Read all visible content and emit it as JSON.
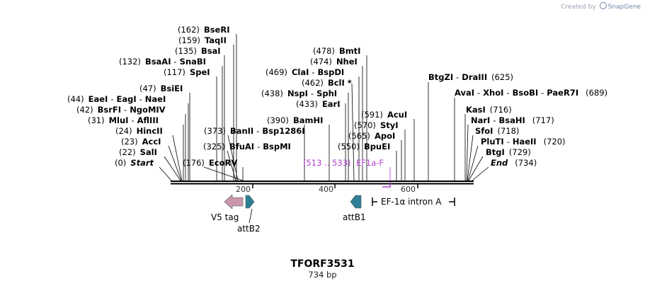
{
  "credit": {
    "prefix": "Created by",
    "brand": "SnapGene"
  },
  "title": "TFORF3531",
  "length_label": "734 bp",
  "ruler": [
    "200",
    "400",
    "600"
  ],
  "sites": [
    {
      "pos": "(162)",
      "names": [
        "BseRI"
      ]
    },
    {
      "pos": "(159)",
      "names": [
        "TaqII"
      ]
    },
    {
      "pos": "(135)",
      "names": [
        "BsaI"
      ]
    },
    {
      "pos": "(132)",
      "names": [
        "BsaAI",
        "SnaBI"
      ]
    },
    {
      "pos": "(117)",
      "names": [
        "SpeI"
      ]
    },
    {
      "pos": "(47)",
      "names": [
        "BsiEI"
      ]
    },
    {
      "pos": "(44)",
      "names": [
        "EaeI",
        "EagI",
        "NaeI"
      ]
    },
    {
      "pos": "(42)",
      "names": [
        "BsrFI",
        "NgoMIV"
      ]
    },
    {
      "pos": "(31)",
      "names": [
        "MluI",
        "AflIII"
      ]
    },
    {
      "pos": "(24)",
      "names": [
        "HincII"
      ]
    },
    {
      "pos": "(23)",
      "names": [
        "AccI"
      ]
    },
    {
      "pos": "(22)",
      "names": [
        "SalI"
      ]
    },
    {
      "pos": "(0)",
      "names": [
        "Start"
      ]
    },
    {
      "pos": "(176)",
      "names": [
        "EcoRV"
      ]
    },
    {
      "pos": "(373)",
      "names": [
        "BanII",
        "Bsp1286I"
      ]
    },
    {
      "pos": "(325)",
      "names": [
        "BfuAI",
        "BspMI"
      ]
    },
    {
      "pos": "(478)",
      "names": [
        "BmtI"
      ]
    },
    {
      "pos": "(474)",
      "names": [
        "NheI"
      ]
    },
    {
      "pos": "(469)",
      "names": [
        "ClaI",
        "BspDI"
      ]
    },
    {
      "pos": "(462)",
      "names": [
        "BclI *"
      ]
    },
    {
      "pos": "(438)",
      "names": [
        "NspI",
        "SphI"
      ]
    },
    {
      "pos": "(433)",
      "names": [
        "EarI"
      ]
    },
    {
      "pos": "(390)",
      "names": [
        "BamHI"
      ]
    },
    {
      "pos": "(591)",
      "names": [
        "AcuI"
      ]
    },
    {
      "pos": "(570)",
      "names": [
        "StyI"
      ]
    },
    {
      "pos": "(565)",
      "names": [
        "ApoI"
      ]
    },
    {
      "pos": "(550)",
      "names": [
        "BpuEI"
      ]
    },
    {
      "pos": "(625)",
      "names": [
        "BtgZI",
        "DraIII"
      ]
    },
    {
      "pos": "(689)",
      "names": [
        "AvaI",
        "XhoI",
        "BsoBI",
        "PaeR7I"
      ]
    },
    {
      "pos": "(716)",
      "names": [
        "KasI"
      ]
    },
    {
      "pos": "(717)",
      "names": [
        "NarI",
        "BsaHI"
      ]
    },
    {
      "pos": "(718)",
      "names": [
        "SfoI"
      ]
    },
    {
      "pos": "(720)",
      "names": [
        "PluTI",
        "HaeII"
      ]
    },
    {
      "pos": "(729)",
      "names": [
        "BtgI"
      ]
    },
    {
      "pos": "(734)",
      "names": [
        "End"
      ]
    }
  ],
  "primer": {
    "range": "(513 .. 533)",
    "name": "EF1a-F",
    "color": "#b040d0"
  },
  "features": [
    {
      "name": "V5 tag",
      "color": "#c996ac"
    },
    {
      "name": "attB2",
      "color": "#2e7e95"
    },
    {
      "name": "attB1",
      "color": "#2e7e95"
    },
    {
      "name": "EF-1α intron A",
      "color": "#000000"
    }
  ]
}
